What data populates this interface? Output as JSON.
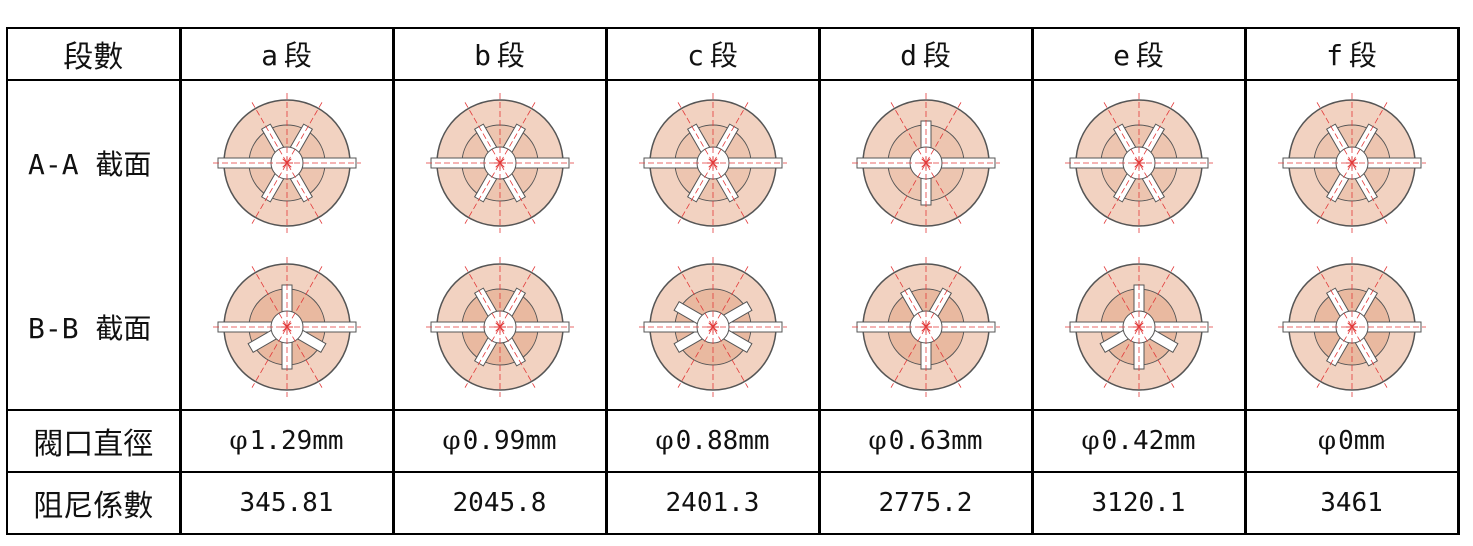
{
  "header": {
    "row_label": "段數",
    "columns": [
      {
        "letter": "a",
        "suffix": "段"
      },
      {
        "letter": "b",
        "suffix": "段"
      },
      {
        "letter": "c",
        "suffix": "段"
      },
      {
        "letter": "d",
        "suffix": "段"
      },
      {
        "letter": "e",
        "suffix": "段"
      },
      {
        "letter": "f",
        "suffix": "段"
      }
    ]
  },
  "rows": {
    "section_a": "A-A 截面",
    "section_b": "B-B 截面",
    "valve_diameter": "閥口直徑",
    "damping_coefficient": "阻尼係數"
  },
  "phi_symbol": "φ",
  "valve_diameters": [
    "1.29mm",
    "0.99mm",
    "0.88mm",
    "0.63mm",
    "0.42mm",
    "0mm"
  ],
  "damping_coefficients": [
    "345.81",
    "2045.8",
    "2401.3",
    "2775.2",
    "3120.1",
    "3461"
  ],
  "colors": {
    "outer_disc": "#f2d2c1",
    "inner_disc": "#e9b9a0",
    "hole": "#ffffff",
    "centerline": "#e23a3a",
    "outline": "#555555"
  },
  "cross_sections": {
    "A": [
      {
        "spokes": [
          0,
          60,
          120,
          180,
          240,
          300
        ],
        "inner_tone": "light"
      },
      {
        "spokes": [
          0,
          60,
          120,
          180,
          240,
          300
        ],
        "inner_tone": "light"
      },
      {
        "spokes": [
          0,
          60,
          120,
          180,
          240,
          300
        ],
        "inner_tone": "light"
      },
      {
        "spokes": [
          0,
          90,
          180,
          270
        ],
        "inner_tone": "light"
      },
      {
        "spokes": [
          0,
          60,
          120,
          180,
          240,
          300
        ],
        "inner_tone": "light"
      },
      {
        "spokes": [
          0,
          60,
          120,
          180,
          240,
          300
        ],
        "inner_tone": "light"
      }
    ],
    "B": [
      {
        "spokes": [
          0,
          90,
          180,
          270,
          150,
          30
        ],
        "inner_tone": "dark"
      },
      {
        "spokes": [
          0,
          60,
          120,
          180,
          240,
          300
        ],
        "inner_tone": "dark"
      },
      {
        "spokes": [
          0,
          30,
          150,
          180,
          210,
          330
        ],
        "inner_tone": "dark"
      },
      {
        "spokes": [
          0,
          90,
          180,
          240,
          300
        ],
        "inner_tone": "dark"
      },
      {
        "spokes": [
          0,
          90,
          180,
          270,
          150,
          30
        ],
        "inner_tone": "dark"
      },
      {
        "spokes": [
          0,
          60,
          120,
          180,
          240,
          300
        ],
        "inner_tone": "dark"
      }
    ]
  }
}
